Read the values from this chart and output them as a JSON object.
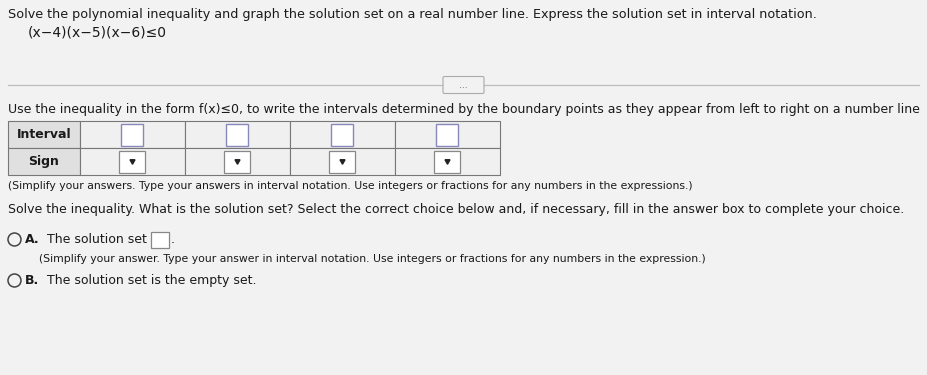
{
  "background_color": "#f2f2f2",
  "title_line1": "Solve the polynomial inequality and graph the solution set on a real number line. Express the solution set in interval notation.",
  "title_line2": "(x−4)(x−5)(x−6)≤0",
  "divider_dots": "...",
  "instruction_text": "Use the inequality in the form f(x)≤0, to write the intervals determined by the boundary points as they appear from left to right on a number line",
  "table_row1": "Interval",
  "table_row2": "Sign",
  "num_cols": 4,
  "simplify_note": "(Simplify your answers. Type your answers in interval notation. Use integers or fractions for any numbers in the expressions.)",
  "solve_prompt": "Solve the inequality. What is the solution set? Select the correct choice below and, if necessary, fill in the answer box to complete your choice.",
  "choice_A_prefix": "A.",
  "choice_A_text": "  The solution set is",
  "choice_A_note": "(Simplify your answer. Type your answer in interval notation. Use integers or fractions for any numbers in the expression.)",
  "choice_B_prefix": "B.",
  "choice_B_text": "  The solution set is the empty set.",
  "text_color": "#1a1a1a",
  "table_border_color": "#777777",
  "table_bg_header": "#e0e0e0",
  "table_bg_cell": "#f0f0f0",
  "dropdown_arrow_color": "#222222",
  "input_box_border": "#8888bb",
  "dropdown_box_border": "#888888",
  "font_size_title": 9.2,
  "font_size_body": 9.0,
  "font_size_math": 10.0,
  "font_size_small": 7.8
}
